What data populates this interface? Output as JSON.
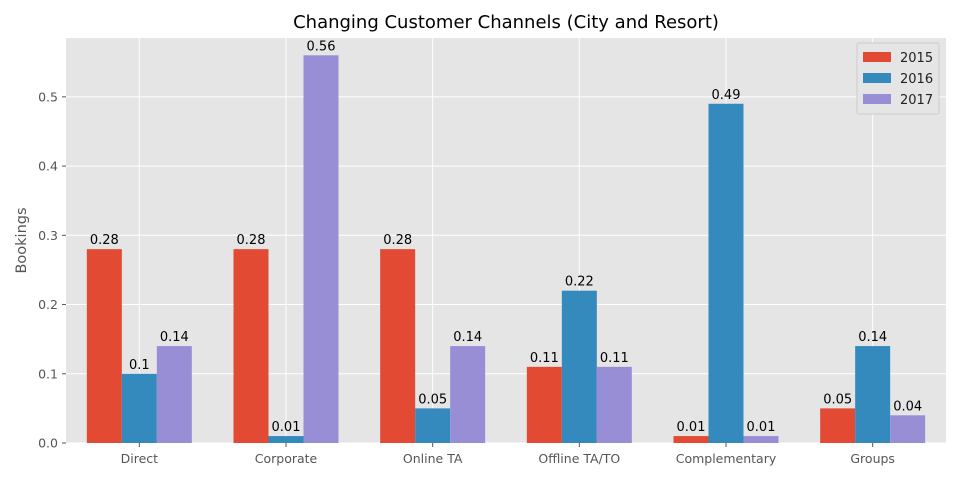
{
  "chart_data": {
    "type": "bar",
    "title": "Changing Customer Channels (City and Resort)",
    "xlabel": "",
    "ylabel": "Bookings",
    "categories": [
      "Direct",
      "Corporate",
      "Online TA",
      "Offline TA/TO",
      "Complementary",
      "Groups"
    ],
    "series": [
      {
        "name": "2015",
        "color": "#E24A33",
        "values": [
          0.28,
          0.28,
          0.28,
          0.11,
          0.01,
          0.05
        ]
      },
      {
        "name": "2016",
        "color": "#348ABD",
        "values": [
          0.1,
          0.01,
          0.05,
          0.22,
          0.49,
          0.14
        ]
      },
      {
        "name": "2017",
        "color": "#988ED5",
        "values": [
          0.14,
          0.56,
          0.14,
          0.11,
          0.01,
          0.04
        ]
      }
    ],
    "ylim": [
      0,
      0.585
    ],
    "yticks": [
      0.0,
      0.1,
      0.2,
      0.3,
      0.4,
      0.5
    ],
    "ytick_labels": [
      "0.0",
      "0.1",
      "0.2",
      "0.3",
      "0.4",
      "0.5"
    ],
    "grid": true,
    "legend": "top-right",
    "background": "#E5E5E5"
  }
}
